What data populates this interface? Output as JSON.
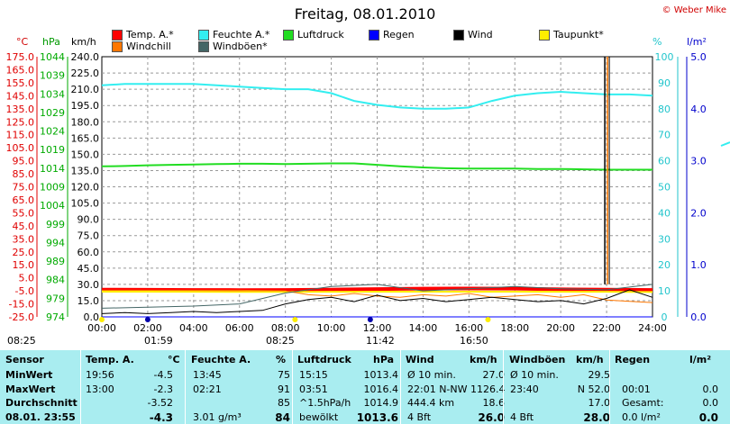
{
  "header": {
    "title": "Freitag, 08.01.2010",
    "copyright": "© Weber Mike"
  },
  "legend": [
    {
      "label": "Temp. A.*",
      "color": "#ff0000"
    },
    {
      "label": "Feuchte A.*",
      "color": "#33eef0"
    },
    {
      "label": "Luftdruck",
      "color": "#22dd22"
    },
    {
      "label": "Regen",
      "color": "#0000ff"
    },
    {
      "label": "Wind",
      "color": "#000000"
    },
    {
      "label": "Taupunkt*",
      "color": "#ffee00"
    },
    {
      "label": "Windchill",
      "color": "#ff7700"
    },
    {
      "label": "Windböen*",
      "color": "#446666"
    }
  ],
  "axis_titles": {
    "temp": "°C",
    "hpa": "hPa",
    "kmh": "km/h",
    "pct": "%",
    "rain": "l/m²"
  },
  "axes": {
    "temp": [
      "175.0",
      "165.0",
      "155.0",
      "145.0",
      "135.0",
      "125.0",
      "115.0",
      "105.0",
      "95.0",
      "85.0",
      "75.0",
      "65.0",
      "55.0",
      "45.0",
      "35.0",
      "25.0",
      "15.0",
      "5.0",
      "-5.0",
      "-15.0",
      "-25.0"
    ],
    "hpa": [
      "1044",
      "1039",
      "1034",
      "1029",
      "1024",
      "1019",
      "1014",
      "1009",
      "1004",
      "999",
      "994",
      "989",
      "984",
      "979",
      "974"
    ],
    "kmh": [
      "240.0",
      "225.0",
      "210.0",
      "195.0",
      "180.0",
      "165.0",
      "150.0",
      "135.0",
      "120.0",
      "105.0",
      "90.0",
      "75.0",
      "60.0",
      "45.0",
      "30.0",
      "15.0",
      "0.0"
    ],
    "pct": [
      "100",
      "90",
      "80",
      "70",
      "60",
      "50",
      "40",
      "30",
      "20",
      "10",
      "0"
    ],
    "rain": [
      "5.0",
      "4.0",
      "3.0",
      "2.0",
      "1.0",
      "0.0"
    ],
    "time": [
      "00:00",
      "02:00",
      "04:00",
      "06:00",
      "08:00",
      "10:00",
      "12:00",
      "14:00",
      "16:00",
      "18:00",
      "20:00",
      "22:00",
      "24:00"
    ]
  },
  "sun": {
    "moon_rise": "08:25",
    "moon_set": "01:59",
    "sunrise": "08:25",
    "moon_2": "11:42",
    "sunset": "16:50"
  },
  "chart_data": {
    "type": "line",
    "title": "Freitag, 08.01.2010",
    "x_range": [
      0,
      24
    ],
    "x_unit": "hours",
    "series": [
      {
        "name": "Feuchte A.*",
        "axis": "%",
        "color": "#33eef0",
        "x": [
          0,
          1,
          2,
          3,
          4,
          5,
          6,
          7,
          8,
          9,
          10,
          11,
          12,
          13,
          14,
          15,
          16,
          17,
          18,
          19,
          20,
          21,
          22,
          23,
          24
        ],
        "y": [
          89,
          89.5,
          89.5,
          89.5,
          89.5,
          89,
          88.5,
          88,
          87.5,
          87.5,
          86,
          83,
          81.5,
          80.5,
          80,
          80,
          80.5,
          83,
          85,
          86,
          86.5,
          86,
          85.5,
          85.5,
          85
        ]
      },
      {
        "name": "Luftdruck",
        "axis": "hPa",
        "color": "#22dd22",
        "x": [
          0,
          1,
          2,
          3,
          4,
          5,
          6,
          7,
          8,
          9,
          10,
          11,
          12,
          13,
          14,
          15,
          16,
          17,
          18,
          19,
          20,
          21,
          22,
          23,
          24
        ],
        "y": [
          1014.5,
          1014.6,
          1014.8,
          1014.9,
          1015.0,
          1015.1,
          1015.2,
          1015.2,
          1015.1,
          1015.2,
          1015.3,
          1015.3,
          1014.9,
          1014.5,
          1014.2,
          1014.0,
          1013.9,
          1013.9,
          1013.9,
          1013.8,
          1013.8,
          1013.7,
          1013.6,
          1013.6,
          1013.6
        ]
      },
      {
        "name": "Temp. A.*",
        "axis": "°C",
        "color": "#ff0000",
        "x": [
          0,
          2,
          4,
          6,
          8,
          10,
          12,
          14,
          16,
          18,
          20,
          22,
          24
        ],
        "y": [
          -4.0,
          -4.2,
          -4.3,
          -4.4,
          -4.3,
          -4.0,
          -3.6,
          -3.3,
          -3.2,
          -3.3,
          -3.8,
          -4.0,
          -4.3
        ]
      },
      {
        "name": "Taupunkt*",
        "axis": "°C",
        "color": "#ffee00",
        "x": [
          0,
          2,
          4,
          6,
          8,
          10,
          12,
          14,
          16,
          18,
          20,
          22,
          24
        ],
        "y": [
          -5.6,
          -5.6,
          -5.7,
          -5.8,
          -5.8,
          -5.7,
          -5.6,
          -5.6,
          -5.6,
          -5.6,
          -5.7,
          -5.7,
          -5.9
        ]
      },
      {
        "name": "Windchill",
        "axis": "°C",
        "color": "#ff7700",
        "x": [
          0,
          2,
          4,
          6,
          8,
          9,
          10,
          11,
          12,
          13,
          14,
          15,
          16,
          17,
          18,
          19,
          20,
          21,
          22,
          23,
          24
        ],
        "y": [
          -4.5,
          -4.5,
          -4.5,
          -4.5,
          -5,
          -8,
          -9,
          -7,
          -9,
          -10,
          -8,
          -9,
          -7,
          -10,
          -9,
          -8,
          -10,
          -8,
          -12,
          -13,
          -14
        ]
      },
      {
        "name": "Wind",
        "axis": "km/h",
        "color": "#000000",
        "x": [
          0,
          1,
          2,
          3,
          4,
          5,
          6,
          7,
          8,
          9,
          10,
          11,
          12,
          13,
          14,
          15,
          16,
          17,
          18,
          19,
          20,
          21,
          22,
          23,
          24
        ],
        "y": [
          3,
          4,
          3,
          4,
          5,
          4,
          5,
          6,
          12,
          16,
          18,
          14,
          20,
          15,
          17,
          14,
          16,
          18,
          16,
          14,
          15,
          12,
          17,
          25,
          18
        ]
      },
      {
        "name": "Windböen*",
        "axis": "km/h",
        "color": "#446666",
        "x": [
          0,
          2,
          4,
          6,
          8,
          10,
          12,
          14,
          16,
          18,
          20,
          22,
          24
        ],
        "y": [
          8,
          9,
          10,
          12,
          22,
          28,
          30,
          24,
          26,
          28,
          26,
          25,
          30
        ]
      },
      {
        "name": "Regen",
        "axis": "l/m²",
        "color": "#0000ff",
        "x": [
          0,
          24
        ],
        "y": [
          0,
          0
        ]
      }
    ],
    "spike": {
      "x": 22.0,
      "note": "vertical marker"
    }
  },
  "table": {
    "headers": {
      "sensor": "Sensor",
      "temp": "Temp. A.",
      "temp_u": "°C",
      "feuchte": "Feuchte A.",
      "feuchte_u": "%",
      "luft": "Luftdruck",
      "luft_u": "hPa",
      "wind": "Wind",
      "wind_u": "km/h",
      "boe": "Windböen",
      "boe_u": "km/h",
      "regen": "Regen",
      "regen_u": "l/m²"
    },
    "rows": [
      {
        "label": "MinWert",
        "temp_t": "19:56",
        "temp_v": "-4.5",
        "f_t": "13:45",
        "f_v": "75",
        "l_t": "15:15",
        "l_v": "1013.4",
        "w_t": "Ø 10 min.",
        "w_v": "27.0",
        "b_t": "Ø 10 min.",
        "b_v": "29.5",
        "r_t": "",
        "r_v": ""
      },
      {
        "label": "MaxWert",
        "temp_t": "13:00",
        "temp_v": "-2.3",
        "f_t": "02:21",
        "f_v": "91",
        "l_t": "03:51",
        "l_v": "1016.4",
        "w_t": "22:01  N-NW 1126.4",
        "w_v": "",
        "b_t": "23:40",
        "b_v": "N 52.0",
        "r_t": "00:01",
        "r_v": "0.0"
      },
      {
        "label": "Durchschnitt",
        "temp_t": "",
        "temp_v": "-3.52",
        "f_t": "",
        "f_v": "85",
        "l_t": "^1.5hPa/h",
        "l_v": "1014.9",
        "w_t": "444.4 km",
        "w_v": "18.6",
        "b_t": "",
        "b_v": "17.0",
        "r_t": "Gesamt:",
        "r_v": "0.0"
      },
      {
        "label": "08.01. 23:55",
        "temp_t": "",
        "temp_v": "-4.3",
        "f_t": "3.01 g/m³",
        "f_v": "84",
        "l_t": "bewölkt",
        "l_v": "1013.6",
        "w_t": "4 Bft",
        "w_v": "26.0",
        "b_t": "4 Bft",
        "b_v": "28.0",
        "r_t": "0.0 l/m²",
        "r_v": "0.0"
      }
    ]
  }
}
